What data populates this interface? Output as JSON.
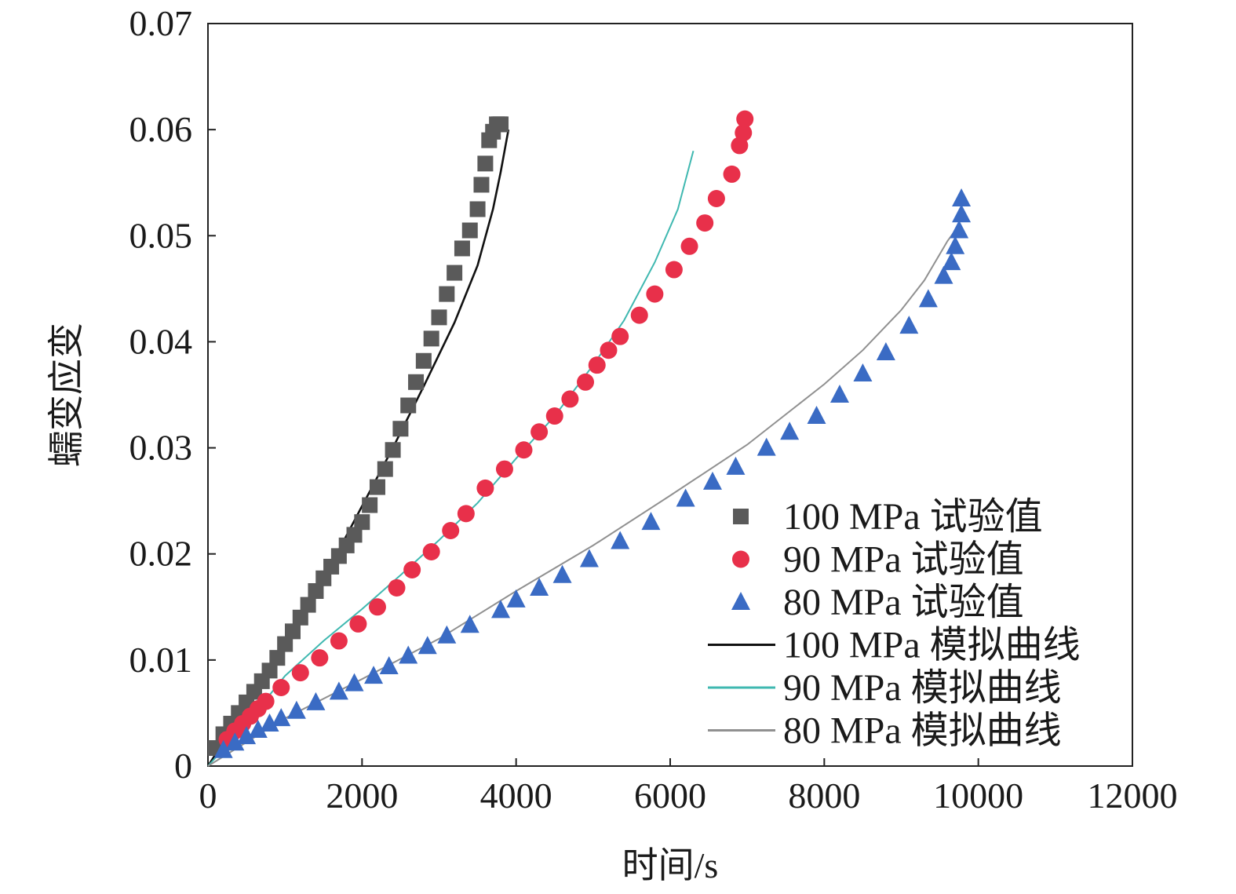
{
  "chart_data": {
    "type": "scatter",
    "title": "",
    "xlabel": "时间/s",
    "ylabel": "蠕变应变",
    "xlim": [
      0,
      12000
    ],
    "ylim": [
      0,
      0.07
    ],
    "x_ticks": [
      0,
      2000,
      4000,
      6000,
      8000,
      10000,
      12000
    ],
    "x_tick_labels": [
      "0",
      "2000",
      "4000",
      "6000",
      "8000",
      "10000",
      "12000"
    ],
    "y_ticks": [
      0,
      0.01,
      0.02,
      0.03,
      0.04,
      0.05,
      0.06,
      0.07
    ],
    "y_tick_labels": [
      "0",
      "0.01",
      "0.02",
      "0.03",
      "0.04",
      "0.05",
      "0.06",
      "0.07"
    ],
    "grid": false,
    "legend_position": "bottom-right",
    "series": [
      {
        "name": "100 MPa 试验值",
        "kind": "scatter",
        "marker": "square",
        "color": "#5a5a5a",
        "x": [
          100,
          200,
          300,
          400,
          500,
          600,
          700,
          800,
          900,
          1000,
          1100,
          1200,
          1300,
          1400,
          1500,
          1600,
          1700,
          1800,
          1900,
          2000,
          2100,
          2200,
          2300,
          2400,
          2500,
          2600,
          2700,
          2800,
          2900,
          3000,
          3100,
          3200,
          3300,
          3400,
          3500,
          3550,
          3600,
          3650,
          3700,
          3750,
          3780,
          3800
        ],
        "y": [
          0.0017,
          0.003,
          0.004,
          0.005,
          0.006,
          0.007,
          0.008,
          0.009,
          0.0102,
          0.0115,
          0.0127,
          0.014,
          0.0152,
          0.0165,
          0.0177,
          0.0188,
          0.0198,
          0.0208,
          0.0218,
          0.023,
          0.0246,
          0.0263,
          0.028,
          0.0298,
          0.0318,
          0.034,
          0.0362,
          0.0382,
          0.0403,
          0.0423,
          0.0445,
          0.0465,
          0.0488,
          0.0505,
          0.0525,
          0.0548,
          0.0568,
          0.059,
          0.0598,
          0.0605,
          0.0605,
          0.0605
        ]
      },
      {
        "name": "90 MPa 试验值",
        "kind": "scatter",
        "marker": "circle",
        "color": "#e8304a",
        "x": [
          250,
          350,
          450,
          550,
          650,
          750,
          950,
          1200,
          1450,
          1700,
          1950,
          2200,
          2450,
          2650,
          2900,
          3150,
          3350,
          3600,
          3850,
          4100,
          4300,
          4500,
          4700,
          4900,
          5050,
          5200,
          5350,
          5600,
          5800,
          6050,
          6250,
          6450,
          6600,
          6800,
          6900,
          6950,
          6970
        ],
        "y": [
          0.0025,
          0.0033,
          0.004,
          0.0047,
          0.0054,
          0.0061,
          0.0074,
          0.0088,
          0.0102,
          0.0118,
          0.0134,
          0.015,
          0.0168,
          0.0185,
          0.0202,
          0.0222,
          0.0238,
          0.0262,
          0.028,
          0.0298,
          0.0315,
          0.033,
          0.0346,
          0.0362,
          0.0378,
          0.0392,
          0.0405,
          0.0425,
          0.0445,
          0.0468,
          0.049,
          0.0512,
          0.0535,
          0.0558,
          0.0585,
          0.0597,
          0.061
        ]
      },
      {
        "name": "80 MPa 试验值",
        "kind": "scatter",
        "marker": "triangle",
        "color": "#3a6bc4",
        "x": [
          200,
          350,
          500,
          650,
          800,
          950,
          1150,
          1400,
          1700,
          1900,
          2150,
          2350,
          2600,
          2850,
          3100,
          3400,
          3800,
          4000,
          4300,
          4600,
          4950,
          5350,
          5750,
          6200,
          6550,
          6850,
          7250,
          7550,
          7900,
          8200,
          8500,
          8800,
          9100,
          9350,
          9550,
          9650,
          9700,
          9750,
          9780,
          9780
        ],
        "y": [
          0.0015,
          0.0022,
          0.0028,
          0.0034,
          0.004,
          0.0045,
          0.0052,
          0.006,
          0.007,
          0.0078,
          0.0085,
          0.0094,
          0.0104,
          0.0113,
          0.0123,
          0.0133,
          0.0147,
          0.0157,
          0.0168,
          0.018,
          0.0195,
          0.0212,
          0.023,
          0.0252,
          0.0268,
          0.0282,
          0.03,
          0.0315,
          0.033,
          0.035,
          0.037,
          0.039,
          0.0415,
          0.044,
          0.0462,
          0.0475,
          0.049,
          0.0505,
          0.052,
          0.0535
        ]
      },
      {
        "name": "100 MPa 模拟曲线",
        "kind": "line",
        "color": "#111111",
        "x": [
          0,
          400,
          800,
          1200,
          1600,
          2000,
          2400,
          2800,
          3200,
          3500,
          3700,
          3800,
          3900
        ],
        "y": [
          0,
          0.0045,
          0.009,
          0.0138,
          0.019,
          0.0245,
          0.03,
          0.0358,
          0.0418,
          0.0472,
          0.0525,
          0.056,
          0.06
        ]
      },
      {
        "name": "90 MPa 模拟曲线",
        "kind": "line",
        "color": "#3fb8b0",
        "x": [
          0,
          500,
          1000,
          1500,
          2000,
          2500,
          3000,
          3500,
          4000,
          4500,
          5000,
          5400,
          5800,
          6100,
          6300
        ],
        "y": [
          0,
          0.004,
          0.0085,
          0.0118,
          0.0148,
          0.018,
          0.0213,
          0.0248,
          0.029,
          0.033,
          0.0378,
          0.042,
          0.0475,
          0.0525,
          0.058
        ]
      },
      {
        "name": "80 MPa 模拟曲线",
        "kind": "line",
        "color": "#909090",
        "x": [
          0,
          1000,
          2000,
          3000,
          4000,
          5000,
          6000,
          7000,
          8000,
          8500,
          9000,
          9300,
          9600,
          9750
        ],
        "y": [
          0,
          0.0045,
          0.0082,
          0.012,
          0.0165,
          0.0208,
          0.0255,
          0.0303,
          0.036,
          0.0392,
          0.043,
          0.0458,
          0.0495,
          0.051
        ]
      }
    ]
  }
}
